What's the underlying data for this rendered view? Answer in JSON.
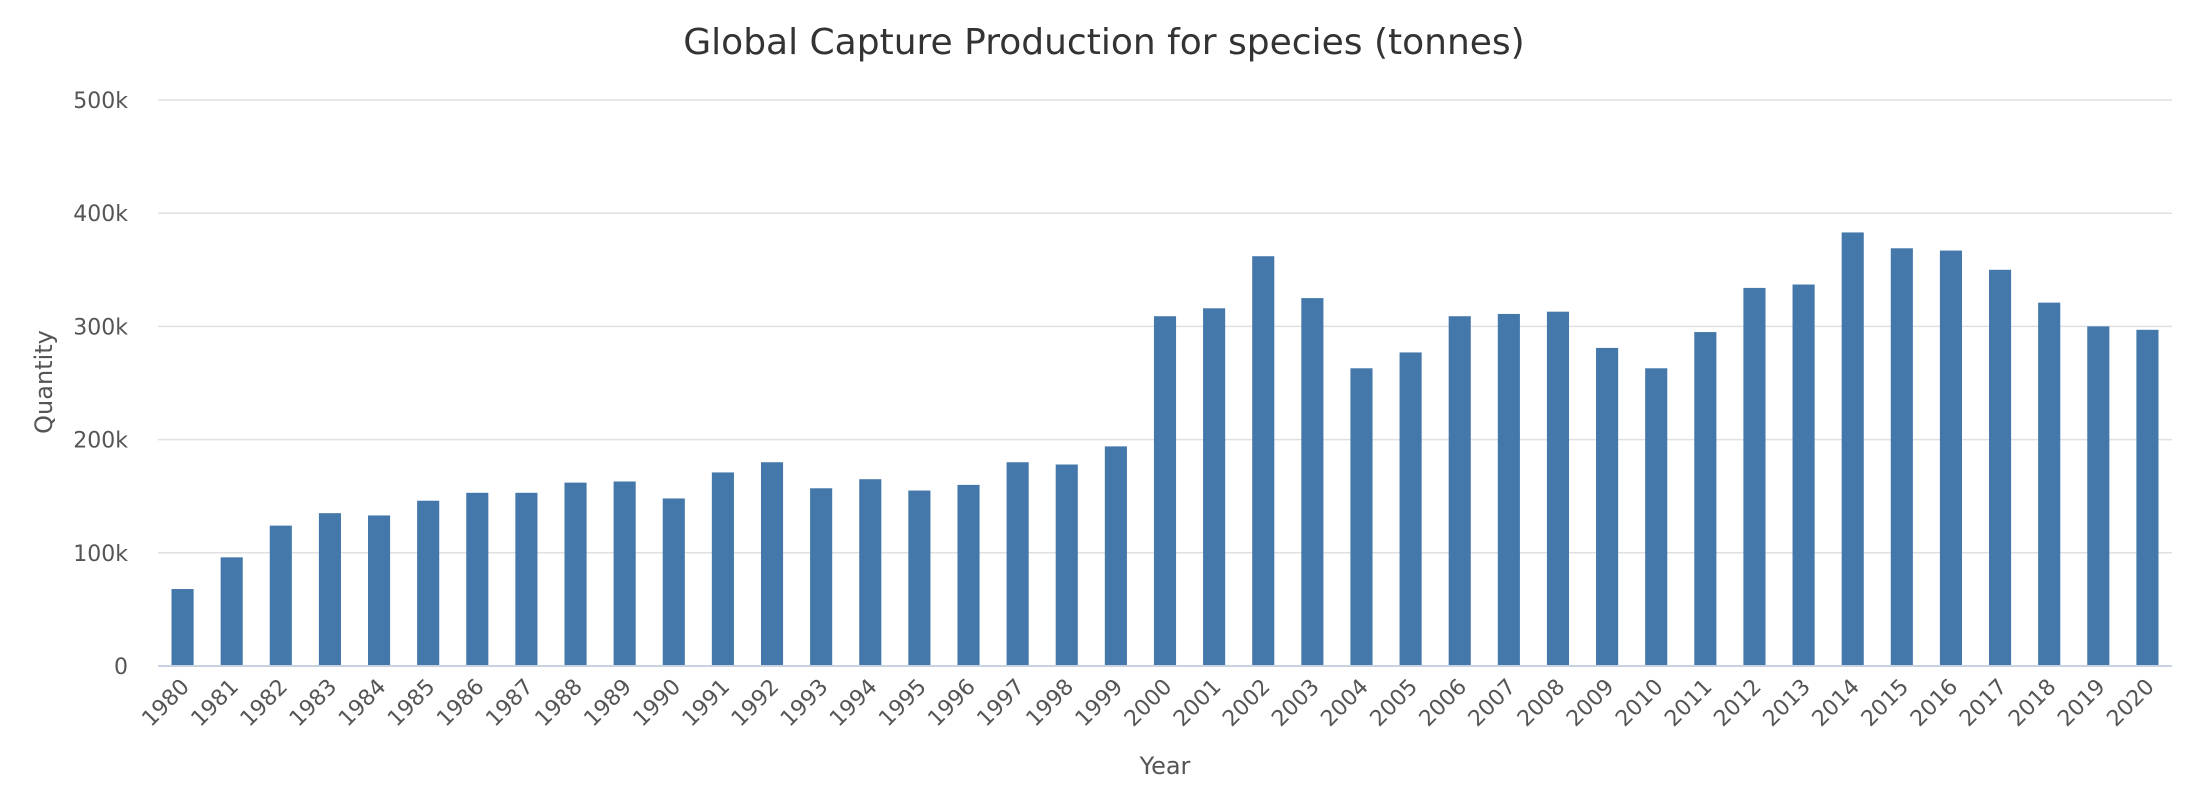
{
  "chart_data": {
    "type": "bar",
    "title": "Global Capture Production for species (tonnes)",
    "xlabel": "Year",
    "ylabel": "Quantity",
    "ylim": [
      0,
      500000
    ],
    "yticks": [
      0,
      100000,
      200000,
      300000,
      400000,
      500000
    ],
    "ytick_labels": [
      "0",
      "100k",
      "200k",
      "300k",
      "400k",
      "500k"
    ],
    "grid": true,
    "legend": "none",
    "bar_color": "#4477aa",
    "categories": [
      "1980",
      "1981",
      "1982",
      "1983",
      "1984",
      "1985",
      "1986",
      "1987",
      "1988",
      "1989",
      "1990",
      "1991",
      "1992",
      "1993",
      "1994",
      "1995",
      "1996",
      "1997",
      "1998",
      "1999",
      "2000",
      "2001",
      "2002",
      "2003",
      "2004",
      "2005",
      "2006",
      "2007",
      "2008",
      "2009",
      "2010",
      "2011",
      "2012",
      "2013",
      "2014",
      "2015",
      "2016",
      "2017",
      "2018",
      "2019",
      "2020"
    ],
    "values": [
      68000,
      96000,
      124000,
      135000,
      133000,
      146000,
      153000,
      153000,
      162000,
      163000,
      148000,
      171000,
      180000,
      157000,
      165000,
      155000,
      160000,
      180000,
      178000,
      194000,
      309000,
      316000,
      362000,
      325000,
      263000,
      277000,
      309000,
      311000,
      313000,
      281000,
      263000,
      295000,
      334000,
      337000,
      383000,
      369000,
      367000,
      350000,
      321000,
      300000,
      297000
    ]
  }
}
